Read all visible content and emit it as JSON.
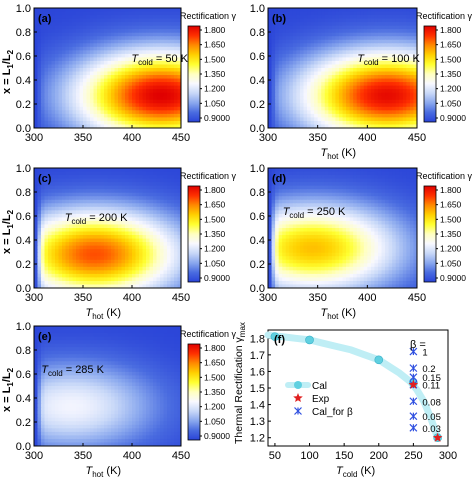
{
  "figure": {
    "shared_axes": {
      "x_label_main": "T",
      "x_label_sub": "hot",
      "x_label_unit": " (K)",
      "y_label_prefix": "x = L",
      "y_label_sub1": "1",
      "y_label_mid": "/L",
      "y_label_sub2": "2",
      "x_ticks": [
        300,
        350,
        400,
        450
      ],
      "y_ticks": [
        0.0,
        0.2,
        0.4,
        0.6,
        0.8,
        1.0
      ],
      "y_tick_labels": [
        "0.0",
        "0.2",
        "0.4",
        "0.6",
        "0.8",
        "1.0"
      ],
      "colorbar_title": "Rectification γ",
      "colorbar_ticks": [
        "1.800",
        "1.650",
        "1.500",
        "1.350",
        "1.200",
        "1.050",
        "0.9000"
      ],
      "colorbar_colors": [
        "#e00000",
        "#ff3000",
        "#ff8a00",
        "#ffd000",
        "#ffff30",
        "#ffffc0",
        "#f8f8ff",
        "#c8d8f8",
        "#8aa8ee",
        "#4a6ce0",
        "#2a44d8"
      ]
    },
    "panels": [
      {
        "id": "a",
        "letter": "(a)",
        "T_main": "T",
        "T_sub": "cold",
        "T_value": " = 50 K",
        "x_label_shown": false,
        "y_label_shown": true
      },
      {
        "id": "b",
        "letter": "(b)",
        "T_main": "T",
        "T_sub": "cold",
        "T_value": " = 100 K",
        "x_label_shown": true,
        "y_label_shown": false
      },
      {
        "id": "c",
        "letter": "(c)",
        "T_main": "T",
        "T_sub": "cold",
        "T_value": " = 200 K",
        "x_label_shown": true,
        "y_label_shown": true
      },
      {
        "id": "d",
        "letter": "(d)",
        "T_main": "T",
        "T_sub": "cold",
        "T_value": " = 250 K",
        "x_label_shown": true,
        "y_label_shown": false
      },
      {
        "id": "e",
        "letter": "(e)",
        "T_main": "T",
        "T_sub": "cold",
        "T_value": " = 285 K",
        "x_label_shown": true,
        "y_label_shown": true
      }
    ],
    "panel_f": {
      "letter": "(f)",
      "ylabel_main": "Thermal Rectification γ",
      "ylabel_sub": "max",
      "xlabel_main": "T",
      "xlabel_sub": "cold",
      "xlabel_unit": " (K)",
      "x_ticks": [
        50,
        100,
        150,
        200,
        250,
        300
      ],
      "y_ticks": [
        "1.2",
        "1.3",
        "1.4",
        "1.5",
        "1.6",
        "1.7",
        "1.8"
      ],
      "beta_title": "β =",
      "legend": [
        {
          "name": "Cal",
          "color": "#5fd0e0"
        },
        {
          "name": "Exp",
          "color": "#e02020"
        },
        {
          "name": "Cal_for β",
          "color": "#3050e0"
        }
      ]
    }
  },
  "chart_data": [
    {
      "type": "heatmap",
      "panel": "a",
      "title": "",
      "xlabel": "T_hot (K)",
      "ylabel": "x = L1/L2",
      "xlim": [
        300,
        450
      ],
      "ylim": [
        0,
        1
      ],
      "zlim": [
        0.9,
        1.8
      ],
      "T_cold": 50,
      "peak": {
        "x": 430,
        "y": 0.27,
        "gamma": 1.8
      }
    },
    {
      "type": "heatmap",
      "panel": "b",
      "title": "",
      "xlabel": "T_hot (K)",
      "ylabel": "x = L1/L2",
      "xlim": [
        300,
        450
      ],
      "ylim": [
        0,
        1
      ],
      "zlim": [
        0.9,
        1.8
      ],
      "T_cold": 100,
      "peak": {
        "x": 420,
        "y": 0.27,
        "gamma": 1.78
      }
    },
    {
      "type": "heatmap",
      "panel": "c",
      "title": "",
      "xlabel": "T_hot (K)",
      "ylabel": "x = L1/L2",
      "xlim": [
        300,
        450
      ],
      "ylim": [
        0,
        1
      ],
      "zlim": [
        0.9,
        1.8
      ],
      "T_cold": 200,
      "peak": {
        "x": 362,
        "y": 0.28,
        "gamma": 1.68
      }
    },
    {
      "type": "heatmap",
      "panel": "d",
      "title": "",
      "xlabel": "T_hot (K)",
      "ylabel": "x = L1/L2",
      "xlim": [
        300,
        450
      ],
      "ylim": [
        0,
        1
      ],
      "zlim": [
        0.9,
        1.8
      ],
      "T_cold": 250,
      "peak": {
        "x": 345,
        "y": 0.33,
        "gamma": 1.55
      }
    },
    {
      "type": "heatmap",
      "panel": "e",
      "title": "",
      "xlabel": "T_hot (K)",
      "ylabel": "x = L1/L2",
      "xlim": [
        300,
        450
      ],
      "ylim": [
        0,
        1
      ],
      "zlim": [
        0.9,
        1.8
      ],
      "T_cold": 285,
      "peak": {
        "x": 338,
        "y": 0.33,
        "gamma": 1.25
      }
    },
    {
      "type": "scatter",
      "panel": "f",
      "title": "",
      "xlabel": "T_cold (K)",
      "ylabel": "Thermal Rectification γ_max",
      "xlim": [
        40,
        300
      ],
      "ylim": [
        1.15,
        1.85
      ],
      "series": [
        {
          "name": "Cal",
          "kind": "line+marker",
          "x": [
            50,
            100,
            200,
            250,
            285
          ],
          "y": [
            1.81,
            1.79,
            1.67,
            1.53,
            1.2
          ],
          "curve_x": [
            40,
            60,
            80,
            100,
            120,
            140,
            160,
            180,
            200,
            215,
            230,
            245,
            255,
            265,
            275,
            285
          ],
          "curve_y": [
            1.82,
            1.81,
            1.8,
            1.79,
            1.77,
            1.75,
            1.73,
            1.7,
            1.67,
            1.63,
            1.59,
            1.54,
            1.49,
            1.42,
            1.32,
            1.2
          ]
        },
        {
          "name": "Exp",
          "kind": "star",
          "x": [
            250,
            285
          ],
          "y": [
            1.52,
            1.2
          ]
        },
        {
          "name": "Cal_for β",
          "kind": "cross",
          "x": [
            250,
            250,
            250,
            250,
            250,
            250,
            250
          ],
          "y": [
            1.72,
            1.62,
            1.565,
            1.52,
            1.42,
            1.33,
            1.26
          ]
        }
      ],
      "beta_labels": [
        "1",
        "0.2",
        "0.15",
        "0.11",
        "0.08",
        "0.05",
        "0.03"
      ]
    }
  ]
}
